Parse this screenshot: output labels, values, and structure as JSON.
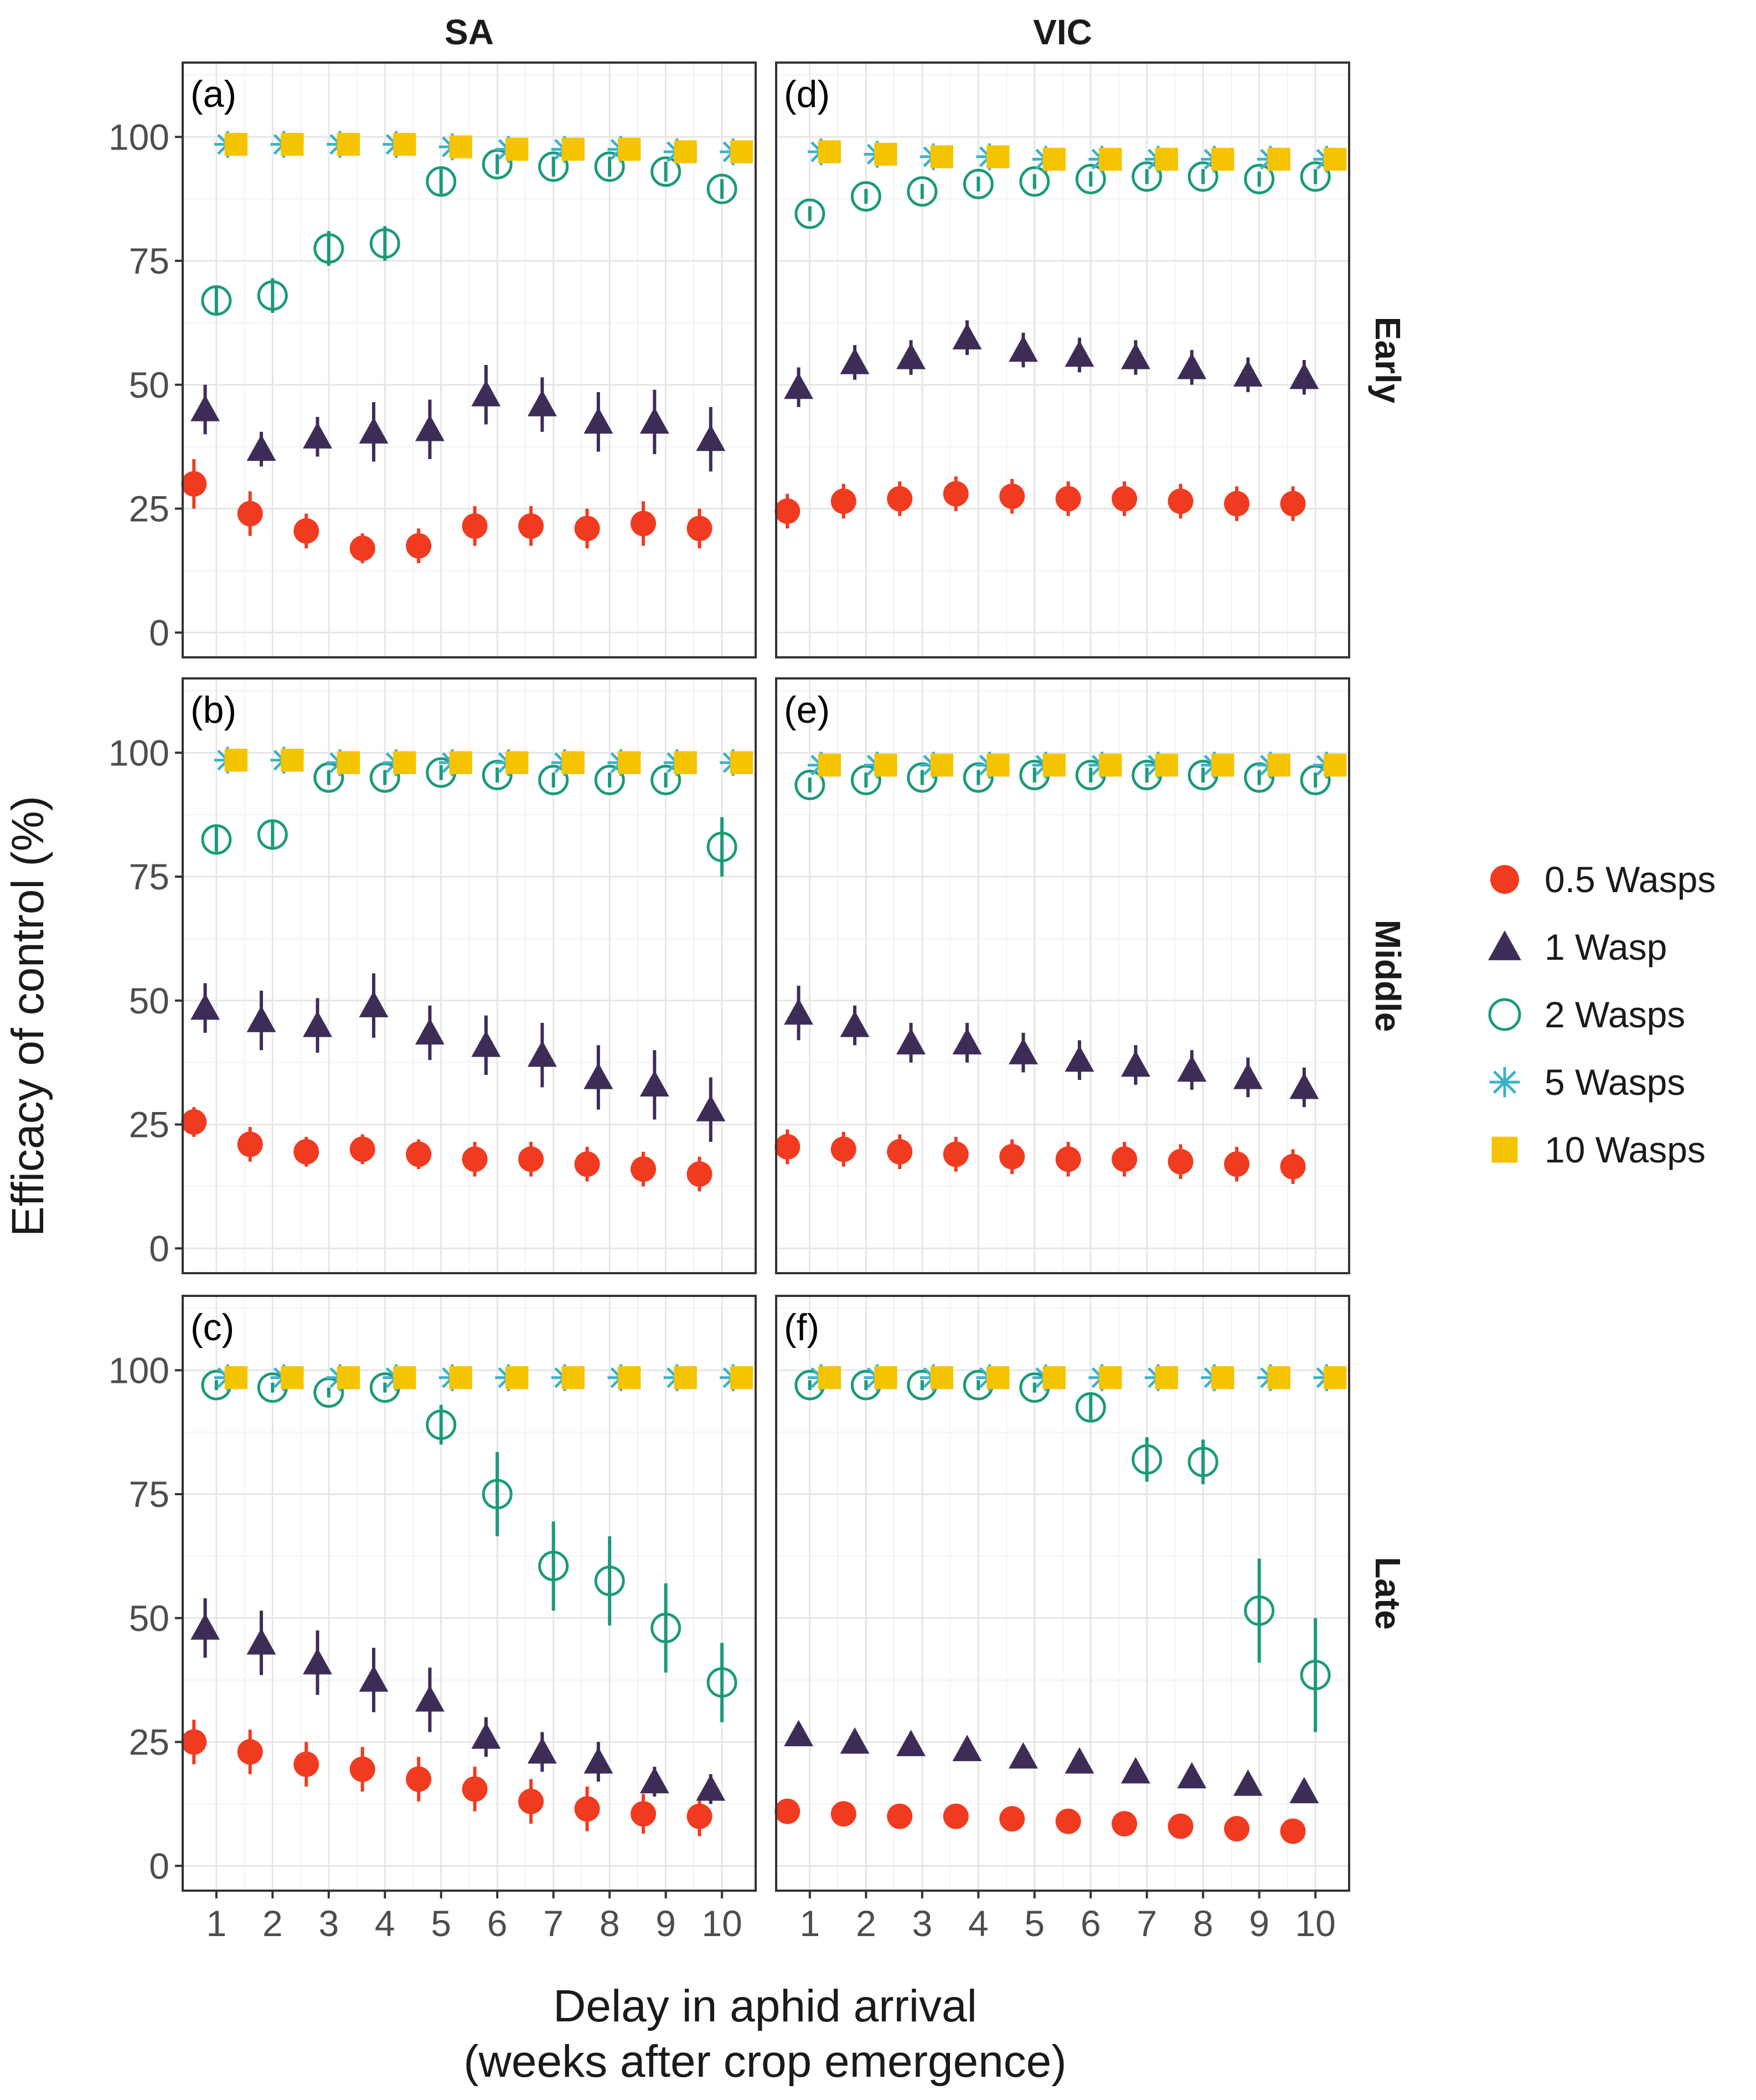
{
  "chart_data": {
    "type": "scatter",
    "facet_columns": [
      "SA",
      "VIC"
    ],
    "facet_rows": [
      "Early",
      "Middle",
      "Late"
    ],
    "xlabel_line1": "Delay in aphid arrival",
    "xlabel_line2": "(weeks after crop emergence)",
    "ylabel": "Efficacy of control (%)",
    "x_ticks": [
      "1",
      "2",
      "3",
      "4",
      "5",
      "6",
      "7",
      "8",
      "9",
      "10"
    ],
    "y_ticks": [
      "0",
      "25",
      "50",
      "75",
      "100"
    ],
    "ylim": [
      -5,
      115
    ],
    "xlim": [
      0.4,
      10.6
    ],
    "grid": true,
    "legend_position": "right",
    "dodge": [
      -0.4,
      -0.2,
      0,
      0.2,
      0.35
    ],
    "series": [
      {
        "name": "0.5 Wasps",
        "color": "#f03b20",
        "shape": "filled-circle"
      },
      {
        "name": "1 Wasp",
        "color": "#3e2c58",
        "shape": "filled-triangle"
      },
      {
        "name": "2 Wasps",
        "color": "#1b9a7b",
        "shape": "open-circle"
      },
      {
        "name": "5 Wasps",
        "color": "#3bb2cb",
        "shape": "asterisk"
      },
      {
        "name": "10 Wasps",
        "color": "#f5c400",
        "shape": "filled-square"
      }
    ],
    "panels": [
      {
        "tag": "(a)",
        "column": "SA",
        "row": "Early",
        "values": [
          [
            30,
            24,
            20.5,
            17,
            17.5,
            21.5,
            21.5,
            21,
            22,
            21
          ],
          [
            45,
            37,
            39.5,
            40.5,
            41,
            48,
            46,
            42.5,
            42.5,
            39
          ],
          [
            67,
            68,
            77.5,
            78.5,
            91,
            94.5,
            94,
            94,
            93,
            89.5
          ],
          [
            98.5,
            98.5,
            98.5,
            98.5,
            98,
            97.5,
            97.5,
            97.5,
            97,
            97
          ],
          [
            98.5,
            98.5,
            98.5,
            98.5,
            98,
            97.5,
            97.5,
            97.5,
            97,
            97
          ]
        ],
        "errors": [
          [
            5,
            4.5,
            3.5,
            3,
            3.5,
            4,
            4,
            4,
            4.5,
            4
          ],
          [
            5,
            3.5,
            4,
            6,
            6,
            6,
            5.5,
            6,
            6.5,
            6.5
          ],
          [
            3,
            3.5,
            3.5,
            3.5,
            2.5,
            2,
            2,
            2,
            2,
            2
          ],
          [
            0.5,
            0.5,
            0.5,
            0.5,
            0.5,
            0.5,
            0.5,
            0.5,
            0.5,
            0.5
          ],
          [
            0.5,
            0.5,
            0.5,
            0.5,
            0.5,
            0.5,
            0.5,
            0.5,
            0.5,
            0.5
          ]
        ]
      },
      {
        "tag": "(b)",
        "column": "SA",
        "row": "Middle",
        "values": [
          [
            25.5,
            21,
            19.5,
            20,
            19,
            18,
            18,
            17,
            16,
            15
          ],
          [
            48.5,
            46,
            45,
            49,
            43.5,
            41,
            39,
            34.5,
            33,
            28
          ],
          [
            82.5,
            83.5,
            95,
            95,
            96,
            95.5,
            94.5,
            94.5,
            94.5,
            81
          ],
          [
            98.5,
            98.5,
            98,
            98,
            98,
            98,
            98,
            98,
            98,
            98
          ],
          [
            98.5,
            98.5,
            98,
            98,
            98,
            98,
            98,
            98,
            98,
            98
          ]
        ],
        "errors": [
          [
            3,
            3.5,
            3,
            3,
            3,
            3.5,
            3.5,
            3.5,
            3.5,
            3.5
          ],
          [
            5,
            6,
            5.5,
            6.5,
            5.5,
            6,
            6.5,
            6.5,
            7,
            6.5
          ],
          [
            2.5,
            2.5,
            1.5,
            1.5,
            1.5,
            1.5,
            1.5,
            1.5,
            1.5,
            6
          ],
          [
            0.5,
            0.5,
            0.5,
            0.5,
            0.5,
            0.5,
            0.5,
            0.5,
            0.5,
            0.5
          ],
          [
            0.5,
            0.5,
            0.5,
            0.5,
            0.5,
            0.5,
            0.5,
            0.5,
            0.5,
            0.5
          ]
        ]
      },
      {
        "tag": "(c)",
        "column": "SA",
        "row": "Late",
        "values": [
          [
            25,
            23,
            20.5,
            19.5,
            17.5,
            15.5,
            13,
            11.5,
            10.5,
            10
          ],
          [
            48,
            45,
            41,
            37.5,
            33.5,
            26,
            23,
            21,
            17,
            15.5
          ],
          [
            97,
            96.5,
            95.5,
            96.5,
            89,
            75,
            60.5,
            57.5,
            48,
            37
          ],
          [
            98.5,
            98.5,
            98.5,
            98.5,
            98.5,
            98.5,
            98.5,
            98.5,
            98.5,
            98.5
          ],
          [
            98.5,
            98.5,
            98.5,
            98.5,
            98.5,
            98.5,
            98.5,
            98.5,
            98.5,
            98.5
          ]
        ],
        "errors": [
          [
            4.5,
            4.5,
            4.5,
            4.5,
            4.5,
            4.5,
            4.5,
            4.5,
            4,
            4
          ],
          [
            6,
            6.5,
            6.5,
            6.5,
            6.5,
            4,
            4,
            4,
            3,
            3
          ],
          [
            1,
            1,
            1,
            1,
            4,
            8.5,
            9,
            9,
            9,
            8
          ],
          [
            0.5,
            0.5,
            0.5,
            0.5,
            0.5,
            0.5,
            0.5,
            0.5,
            0.5,
            0.5
          ],
          [
            0.5,
            0.5,
            0.5,
            0.5,
            0.5,
            0.5,
            0.5,
            0.5,
            0.5,
            0.5
          ]
        ]
      },
      {
        "tag": "(d)",
        "column": "VIC",
        "row": "Early",
        "values": [
          [
            24.5,
            26.5,
            27,
            28,
            27.5,
            27,
            27,
            26.5,
            26,
            26
          ],
          [
            49.5,
            54.5,
            55.5,
            59.5,
            57,
            56,
            55.5,
            53.5,
            52,
            51.5
          ],
          [
            84.5,
            88,
            89,
            90.5,
            91,
            91.5,
            92,
            92,
            91.5,
            92
          ],
          [
            97,
            96.5,
            96,
            96,
            95.5,
            95.5,
            95.5,
            95.5,
            95.5,
            95.5
          ],
          [
            97,
            96.5,
            96,
            96,
            95.5,
            95.5,
            95.5,
            95.5,
            95.5,
            95.5
          ]
        ],
        "errors": [
          [
            3.5,
            3.5,
            3.5,
            3.5,
            3.5,
            3.5,
            3.5,
            3.5,
            3.5,
            3.5
          ],
          [
            4,
            3.5,
            3.5,
            3.5,
            3.5,
            3.5,
            3.5,
            3.5,
            3.5,
            3.5
          ],
          [
            1.5,
            1.5,
            1.5,
            1.5,
            1.5,
            1.5,
            1.5,
            1.5,
            1.5,
            1.5
          ],
          [
            0.5,
            0.5,
            0.5,
            0.5,
            0.5,
            0.5,
            0.5,
            0.5,
            0.5,
            0.5
          ],
          [
            0.5,
            0.5,
            0.5,
            0.5,
            0.5,
            0.5,
            0.5,
            0.5,
            0.5,
            0.5
          ]
        ]
      },
      {
        "tag": "(e)",
        "column": "VIC",
        "row": "Middle",
        "values": [
          [
            20.5,
            20,
            19.5,
            19,
            18.5,
            18,
            18,
            17.5,
            17,
            16.5
          ],
          [
            47.5,
            45,
            41.5,
            41.5,
            39.5,
            38,
            37,
            36,
            34.5,
            32.5
          ],
          [
            93.5,
            94.5,
            95,
            95,
            95.5,
            95.5,
            95.5,
            95.5,
            95,
            94.5
          ],
          [
            97.5,
            97.5,
            97.5,
            97.5,
            97.5,
            97.5,
            97.5,
            97.5,
            97.5,
            97.5
          ],
          [
            97.5,
            97.5,
            97.5,
            97.5,
            97.5,
            97.5,
            97.5,
            97.5,
            97.5,
            97.5
          ]
        ],
        "errors": [
          [
            3.5,
            3.5,
            3.5,
            3.5,
            3.5,
            3.5,
            3.5,
            3.5,
            3.5,
            3.5
          ],
          [
            5.5,
            4,
            4,
            4,
            4,
            4,
            4,
            4,
            4,
            4
          ],
          [
            1.5,
            1.5,
            1.5,
            1.5,
            1.5,
            1.5,
            1.5,
            1.5,
            1.5,
            1.5
          ],
          [
            0.5,
            0.5,
            0.5,
            0.5,
            0.5,
            0.5,
            0.5,
            0.5,
            0.5,
            0.5
          ],
          [
            0.5,
            0.5,
            0.5,
            0.5,
            0.5,
            0.5,
            0.5,
            0.5,
            0.5,
            0.5
          ]
        ]
      },
      {
        "tag": "(f)",
        "column": "VIC",
        "row": "Late",
        "values": [
          [
            11,
            10.5,
            10,
            10,
            9.5,
            9,
            8.5,
            8,
            7.5,
            7
          ],
          [
            26.5,
            25,
            24.5,
            23.5,
            22,
            21,
            19,
            18,
            16.5,
            15
          ],
          [
            97,
            97,
            97,
            97,
            96.5,
            92.5,
            82,
            81.5,
            51.5,
            38.5
          ],
          [
            98.5,
            98.5,
            98.5,
            98.5,
            98.5,
            98.5,
            98.5,
            98.5,
            98.5,
            98.5
          ],
          [
            98.5,
            98.5,
            98.5,
            98.5,
            98.5,
            98.5,
            98.5,
            98.5,
            98.5,
            98.5
          ]
        ],
        "errors": [
          [
            0.5,
            0.5,
            0.5,
            0.5,
            0.5,
            0.5,
            0.5,
            0.5,
            0.5,
            0.5
          ],
          [
            1,
            1,
            1,
            1,
            1,
            1,
            1,
            1,
            1,
            1
          ],
          [
            1,
            1,
            1,
            1,
            1,
            2.5,
            4.5,
            4.5,
            10.5,
            11.5
          ],
          [
            0.5,
            0.5,
            0.5,
            0.5,
            0.5,
            0.5,
            0.5,
            0.5,
            0.5,
            0.5
          ],
          [
            0.5,
            0.5,
            0.5,
            0.5,
            0.5,
            0.5,
            0.5,
            0.5,
            0.5,
            0.5
          ]
        ]
      }
    ]
  }
}
